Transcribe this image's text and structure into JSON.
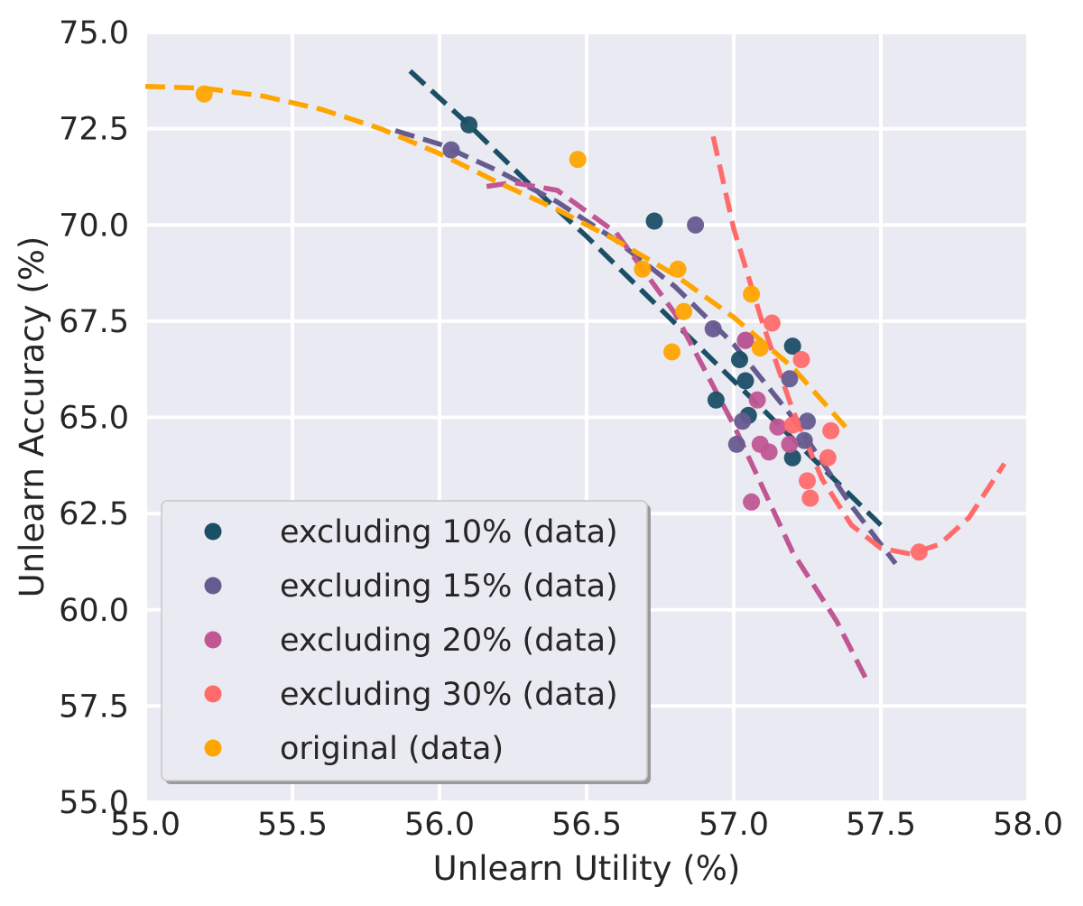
{
  "chart_data": {
    "type": "scatter",
    "xlabel": "Unlearn Utility (%)",
    "ylabel": "Unlearn Accuracy (%)",
    "xlim": [
      55.0,
      58.0
    ],
    "ylim": [
      55.0,
      75.0
    ],
    "x_ticks": [
      "55.0",
      "55.5",
      "56.0",
      "56.5",
      "57.0",
      "57.5",
      "58.0"
    ],
    "y_ticks": [
      "55.0",
      "57.5",
      "60.0",
      "62.5",
      "65.0",
      "67.5",
      "70.0",
      "72.5",
      "75.0"
    ],
    "grid": true,
    "legend_position": "lower-left",
    "series": [
      {
        "name": "excluding 10% (data)",
        "color": "#1b4f66",
        "points": [
          [
            56.1,
            72.6
          ],
          [
            56.73,
            70.1
          ],
          [
            56.94,
            65.45
          ],
          [
            57.02,
            66.5
          ],
          [
            57.04,
            65.95
          ],
          [
            57.05,
            65.05
          ],
          [
            57.2,
            66.85
          ],
          [
            57.2,
            63.95
          ]
        ],
        "fit": [
          [
            55.9,
            74.0
          ],
          [
            56.1,
            72.6
          ],
          [
            56.3,
            71.1
          ],
          [
            56.5,
            69.7
          ],
          [
            56.7,
            68.2
          ],
          [
            56.9,
            66.7
          ],
          [
            57.1,
            65.2
          ],
          [
            57.3,
            63.7
          ],
          [
            57.5,
            62.2
          ]
        ]
      },
      {
        "name": "excluding 15% (data)",
        "color": "#665b8f",
        "points": [
          [
            56.04,
            71.95
          ],
          [
            56.87,
            70.0
          ],
          [
            56.93,
            67.3
          ],
          [
            57.01,
            64.3
          ],
          [
            57.03,
            64.9
          ],
          [
            57.04,
            67.0
          ],
          [
            57.19,
            66.0
          ],
          [
            57.24,
            64.4
          ],
          [
            57.25,
            64.9
          ]
        ],
        "fit": [
          [
            55.85,
            72.45
          ],
          [
            56.0,
            72.1
          ],
          [
            56.2,
            71.4
          ],
          [
            56.4,
            70.6
          ],
          [
            56.6,
            69.6
          ],
          [
            56.8,
            68.4
          ],
          [
            57.0,
            66.9
          ],
          [
            57.2,
            65.0
          ],
          [
            57.4,
            62.7
          ],
          [
            57.55,
            61.2
          ]
        ]
      },
      {
        "name": "excluding 20% (data)",
        "color": "#c05694",
        "points": [
          [
            57.04,
            67.0
          ],
          [
            57.06,
            62.8
          ],
          [
            57.08,
            65.45
          ],
          [
            57.09,
            64.3
          ],
          [
            57.12,
            64.1
          ],
          [
            57.15,
            64.75
          ],
          [
            57.19,
            64.3
          ]
        ],
        "fit": [
          [
            56.16,
            71.0
          ],
          [
            56.25,
            71.1
          ],
          [
            56.4,
            70.9
          ],
          [
            56.6,
            69.8
          ],
          [
            56.8,
            67.7
          ],
          [
            57.0,
            64.8
          ],
          [
            57.2,
            61.5
          ],
          [
            57.35,
            59.7
          ],
          [
            57.45,
            58.2
          ]
        ]
      },
      {
        "name": "excluding 30% (data)",
        "color": "#ff6b6b",
        "points": [
          [
            57.13,
            67.45
          ],
          [
            57.2,
            64.8
          ],
          [
            57.23,
            66.5
          ],
          [
            57.25,
            63.35
          ],
          [
            57.26,
            62.9
          ],
          [
            57.32,
            63.95
          ],
          [
            57.33,
            64.65
          ],
          [
            57.63,
            61.5
          ]
        ],
        "fit": [
          [
            56.93,
            72.3
          ],
          [
            57.0,
            69.9
          ],
          [
            57.1,
            67.4
          ],
          [
            57.2,
            65.2
          ],
          [
            57.3,
            63.4
          ],
          [
            57.4,
            62.2
          ],
          [
            57.5,
            61.6
          ],
          [
            57.6,
            61.45
          ],
          [
            57.7,
            61.7
          ],
          [
            57.8,
            62.4
          ],
          [
            57.92,
            63.8
          ]
        ]
      },
      {
        "name": "original (data)",
        "color": "#ffa500",
        "points": [
          [
            55.2,
            73.4
          ],
          [
            56.47,
            71.7
          ],
          [
            56.69,
            68.85
          ],
          [
            56.79,
            66.7
          ],
          [
            56.81,
            68.85
          ],
          [
            56.83,
            67.75
          ],
          [
            57.06,
            68.2
          ],
          [
            57.09,
            66.8
          ]
        ],
        "fit": [
          [
            55.0,
            73.6
          ],
          [
            55.2,
            73.55
          ],
          [
            55.4,
            73.35
          ],
          [
            55.6,
            73.0
          ],
          [
            55.8,
            72.5
          ],
          [
            56.0,
            71.85
          ],
          [
            56.2,
            71.1
          ],
          [
            56.4,
            70.4
          ],
          [
            56.6,
            69.6
          ],
          [
            56.8,
            68.7
          ],
          [
            57.0,
            67.6
          ],
          [
            57.2,
            66.3
          ],
          [
            57.38,
            64.75
          ]
        ]
      }
    ]
  }
}
